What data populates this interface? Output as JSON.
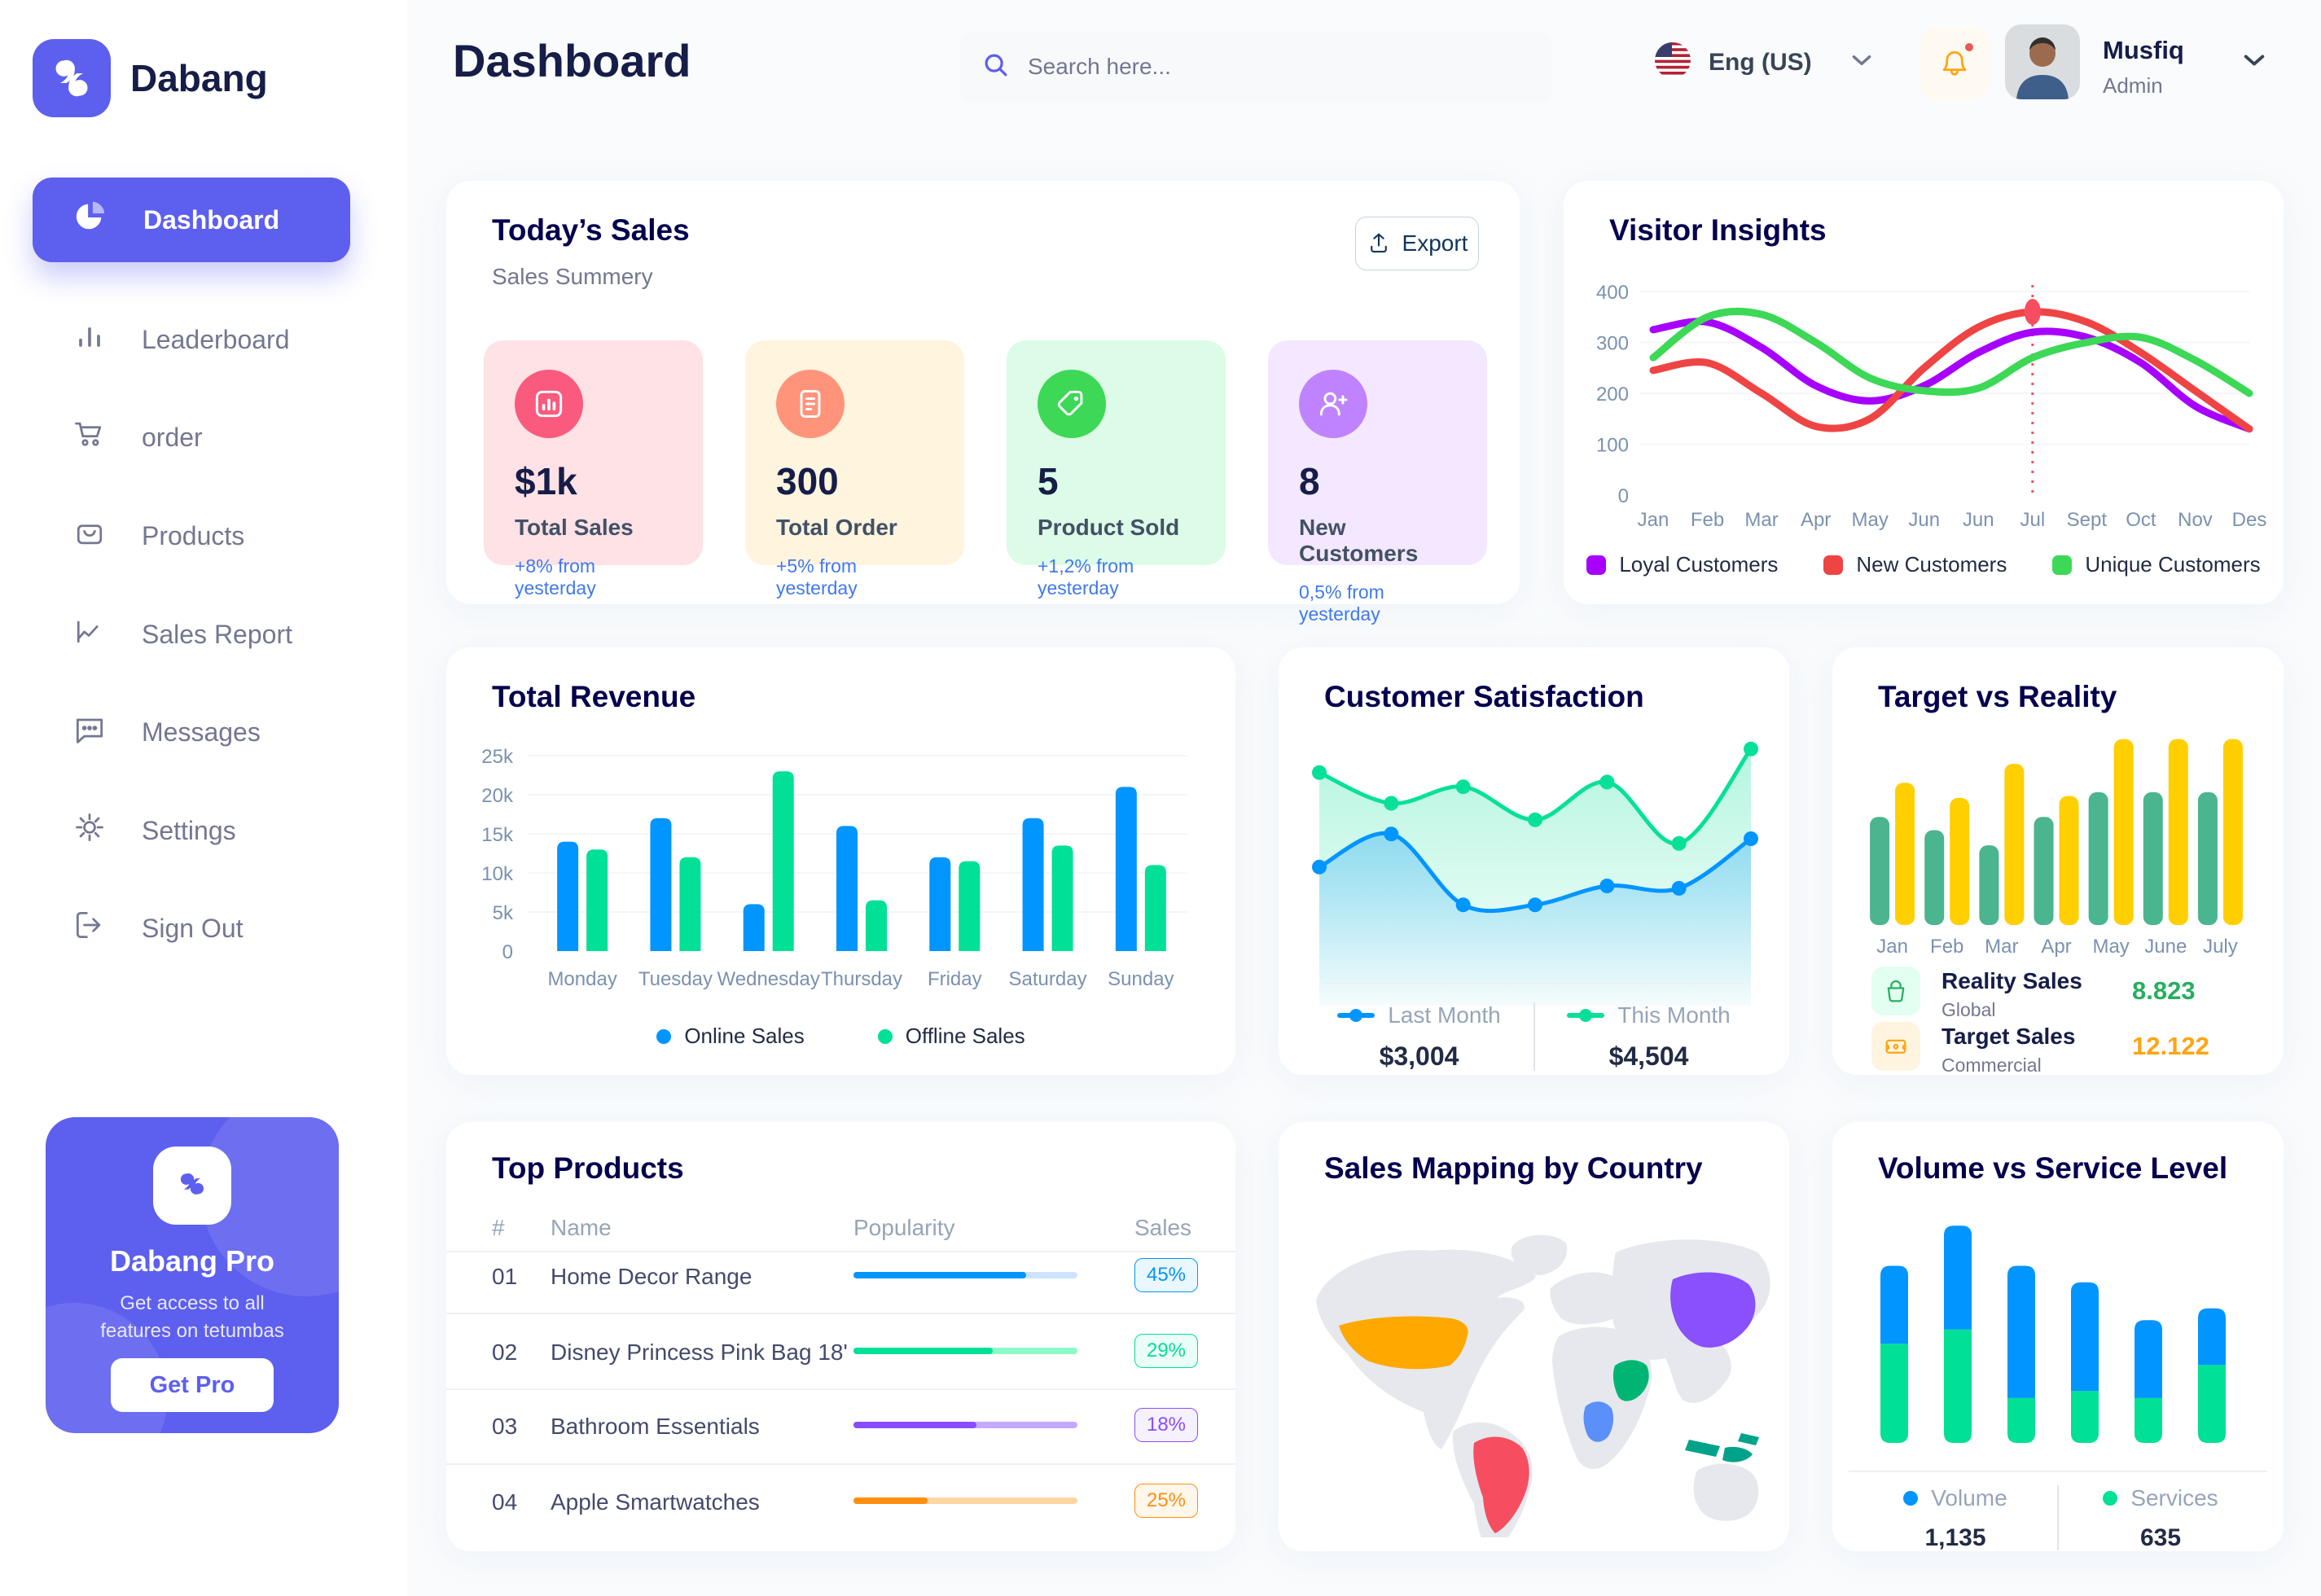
{
  "brand": {
    "name": "Dabang",
    "accent": "#5D5FEF"
  },
  "header": {
    "title": "Dashboard",
    "search_placeholder": "Search here...",
    "language": "Eng (US)",
    "user_name": "Musfiq",
    "user_role": "Admin"
  },
  "sidebar": {
    "items": [
      {
        "label": "Dashboard",
        "active": true
      },
      {
        "label": "Leaderboard"
      },
      {
        "label": "order"
      },
      {
        "label": "Products"
      },
      {
        "label": "Sales Report"
      },
      {
        "label": "Messages"
      },
      {
        "label": "Settings"
      },
      {
        "label": "Sign Out"
      }
    ],
    "pro": {
      "title": "Dabang Pro",
      "desc": "Get access to all features on tetumbas",
      "cta": "Get Pro"
    }
  },
  "today_sales": {
    "title": "Today’s Sales",
    "subtitle": "Sales Summery",
    "export_label": "Export",
    "stats": [
      {
        "value": "$1k",
        "label": "Total Sales",
        "delta": "+8% from yesterday",
        "bg": "#FFE2E5",
        "icon_bg": "#FA5A7D",
        "icon": "bar-chart-icon"
      },
      {
        "value": "300",
        "label": "Total Order",
        "delta": "+5% from yesterday",
        "bg": "#FFF4DE",
        "icon_bg": "#FF947A",
        "icon": "order-file-icon"
      },
      {
        "value": "5",
        "label": "Product Sold",
        "delta": "+1,2% from yesterday",
        "bg": "#DCFCE7",
        "icon_bg": "#3CD856",
        "icon": "tag-icon"
      },
      {
        "value": "8",
        "label": "New Customers",
        "delta": "0,5% from yesterday",
        "bg": "#F3E8FF",
        "icon_bg": "#BF83FF",
        "icon": "user-plus-icon"
      }
    ]
  },
  "chart_data": [
    {
      "id": "visitor_insights",
      "type": "line",
      "title": "Visitor Insights",
      "x_labels": [
        "Jan",
        "Feb",
        "Mar",
        "Apr",
        "May",
        "Jun",
        "Jun",
        "Jul",
        "Sept",
        "Oct",
        "Nov",
        "Des"
      ],
      "y_ticks": [
        0,
        100,
        200,
        300,
        400
      ],
      "ylim": [
        0,
        400
      ],
      "grid": true,
      "legend_position": "bottom",
      "series": [
        {
          "name": "Loyal Customers",
          "color": "#A700FF",
          "values": [
            325,
            340,
            290,
            215,
            185,
            215,
            280,
            320,
            310,
            260,
            175,
            130
          ]
        },
        {
          "name": "New Customers",
          "color": "#EF4444",
          "values": [
            245,
            260,
            200,
            135,
            150,
            250,
            330,
            360,
            340,
            280,
            205,
            130
          ]
        },
        {
          "name": "Unique Customers",
          "color": "#3CD856",
          "values": [
            270,
            350,
            355,
            300,
            230,
            205,
            210,
            270,
            300,
            310,
            265,
            200
          ]
        }
      ],
      "marker": {
        "series": "New Customers",
        "x_index": 7,
        "x_label": "Jul",
        "value": 360,
        "vline": true,
        "vline_color": "#F64E60"
      }
    },
    {
      "id": "total_revenue",
      "type": "bar",
      "title": "Total Revenue",
      "categories": [
        "Monday",
        "Tuesday",
        "Wednesday",
        "Thursday",
        "Friday",
        "Saturday",
        "Sunday"
      ],
      "y_ticks": [
        "0",
        "5k",
        "10k",
        "15k",
        "20k",
        "25k"
      ],
      "ylim": [
        0,
        25000
      ],
      "grid": true,
      "legend_position": "bottom",
      "series": [
        {
          "name": "Online Sales",
          "color": "#0095FF",
          "values": [
            14000,
            17000,
            6000,
            16000,
            12000,
            17000,
            21000
          ]
        },
        {
          "name": "Offline Sales",
          "color": "#00E096",
          "values": [
            13000,
            12000,
            23000,
            6500,
            11500,
            13500,
            11000
          ]
        }
      ]
    },
    {
      "id": "customer_satisfaction",
      "type": "area",
      "title": "Customer Satisfaction",
      "ylim": [
        0,
        100
      ],
      "legend_position": "bottom",
      "series": [
        {
          "name": "Last Month",
          "total": "$3,004",
          "color": "#0095FF",
          "values": [
            38,
            52,
            22,
            22,
            30,
            29,
            50
          ]
        },
        {
          "name": "This Month",
          "total": "$4,504",
          "color": "#07E098",
          "values": [
            78,
            65,
            72,
            58,
            74,
            48,
            88
          ]
        }
      ]
    },
    {
      "id": "target_vs_reality",
      "type": "bar",
      "title": "Target vs Reality",
      "categories": [
        "Jan",
        "Feb",
        "Mar",
        "Apr",
        "May",
        "June",
        "July"
      ],
      "ylim": [
        0,
        100
      ],
      "series": [
        {
          "name": "Reality Sales",
          "subtitle": "Global",
          "color": "#4AB58E",
          "value_label": "8.823",
          "value_color": "#27AE60",
          "values": [
            57,
            50,
            42,
            57,
            70,
            70,
            70
          ]
        },
        {
          "name": "Target Sales",
          "subtitle": "Commercial",
          "color": "#FFCF00",
          "value_label": "12.122",
          "value_color": "#FFA412",
          "values": [
            75,
            67,
            85,
            68,
            98,
            98,
            98
          ]
        }
      ]
    },
    {
      "id": "top_products",
      "type": "table",
      "title": "Top Products",
      "headers": [
        "#",
        "Name",
        "Popularity",
        "Sales"
      ],
      "rows": [
        {
          "num": "01",
          "name": "Home Decor Range",
          "popularity": 77,
          "sales": "45%",
          "color": "#0095FF",
          "track": "#CDE4FF"
        },
        {
          "num": "02",
          "name": "Disney Princess Pink Bag 18'",
          "popularity": 62,
          "sales": "29%",
          "color": "#00E096",
          "track": "#8CFAC7"
        },
        {
          "num": "03",
          "name": "Bathroom Essentials",
          "popularity": 55,
          "sales": "18%",
          "color": "#884DFF",
          "track": "#C5A8FF"
        },
        {
          "num": "04",
          "name": "Apple Smartwatches",
          "popularity": 33,
          "sales": "25%",
          "color": "#FF8F0D",
          "track": "#FFD5A4"
        }
      ]
    },
    {
      "id": "sales_map",
      "type": "map",
      "title": "Sales Mapping by Country",
      "countries": [
        {
          "name": "United States",
          "color": "#FFA800"
        },
        {
          "name": "Brazil",
          "color": "#F64E60"
        },
        {
          "name": "Saudi Arabia",
          "color": "#00B574"
        },
        {
          "name": "DR Congo",
          "color": "#5B8FF9"
        },
        {
          "name": "China",
          "color": "#8950FC"
        },
        {
          "name": "Indonesia",
          "color": "#00A389"
        }
      ]
    },
    {
      "id": "volume_vs_service",
      "type": "stacked-bar",
      "title": "Volume vs Service Level",
      "ylim": [
        0,
        100
      ],
      "legend_position": "bottom",
      "series": [
        {
          "name": "Volume",
          "total": "1,135",
          "color": "#0095FF",
          "values": [
            33,
            44,
            56,
            46,
            33,
            24
          ]
        },
        {
          "name": "Services",
          "total": "635",
          "color": "#00E096",
          "values": [
            42,
            48,
            19,
            22,
            19,
            33
          ]
        }
      ]
    }
  ]
}
